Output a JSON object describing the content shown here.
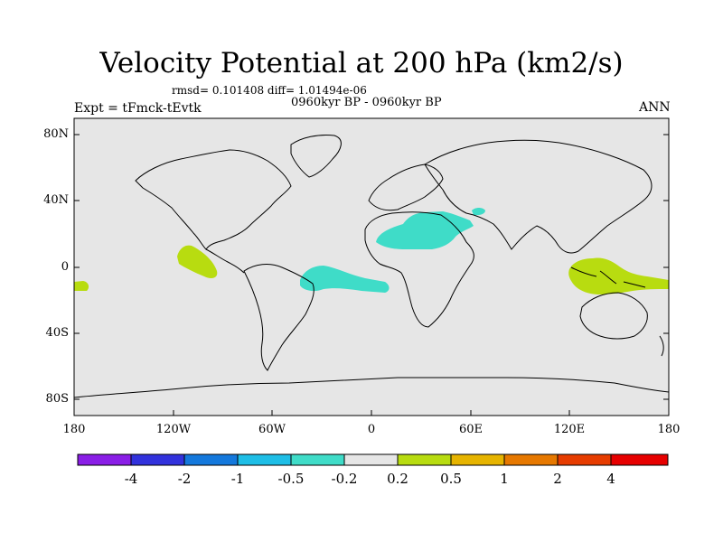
{
  "title": "Velocity Potential at 200 hPa (km2/s)",
  "stats": "rmsd= 0.101408 diff= 1.01494e-06",
  "period": "0960kyr BP - 0960kyr BP",
  "expt": "Expt = tFmck-tEvtk",
  "season": "ANN",
  "map": {
    "lat_labels": [
      "80N",
      "40N",
      "0",
      "40S",
      "80S"
    ],
    "lon_labels": [
      "180",
      "120W",
      "60W",
      "0",
      "60E",
      "120E",
      "180"
    ],
    "background": "#e6e6e6",
    "anomaly_regions": [
      {
        "name": "north-africa-arabia",
        "color": "#3fdcc8",
        "bin": "-0.5 to -0.2"
      },
      {
        "name": "tropical-atlantic",
        "color": "#3fdcc8",
        "bin": "-0.5 to -0.2"
      },
      {
        "name": "eastern-pacific",
        "color": "#b8dc10",
        "bin": "0.2 to 0.5"
      },
      {
        "name": "central-pacific-edge",
        "color": "#b8dc10",
        "bin": "0.2 to 0.5"
      },
      {
        "name": "maritime-continent",
        "color": "#b8dc10",
        "bin": "0.2 to 0.5"
      }
    ]
  },
  "colorbar": {
    "labels": [
      "-4",
      "-2",
      "-1",
      "-0.5",
      "-0.2",
      "0.2",
      "0.5",
      "1",
      "2",
      "4"
    ],
    "colors": [
      "#8a1ee6",
      "#3232dc",
      "#1478dc",
      "#1ebee6",
      "#3fdcc8",
      "#e6e6e6",
      "#b8dc10",
      "#e6b400",
      "#e67800",
      "#e63c00",
      "#e60000"
    ]
  }
}
